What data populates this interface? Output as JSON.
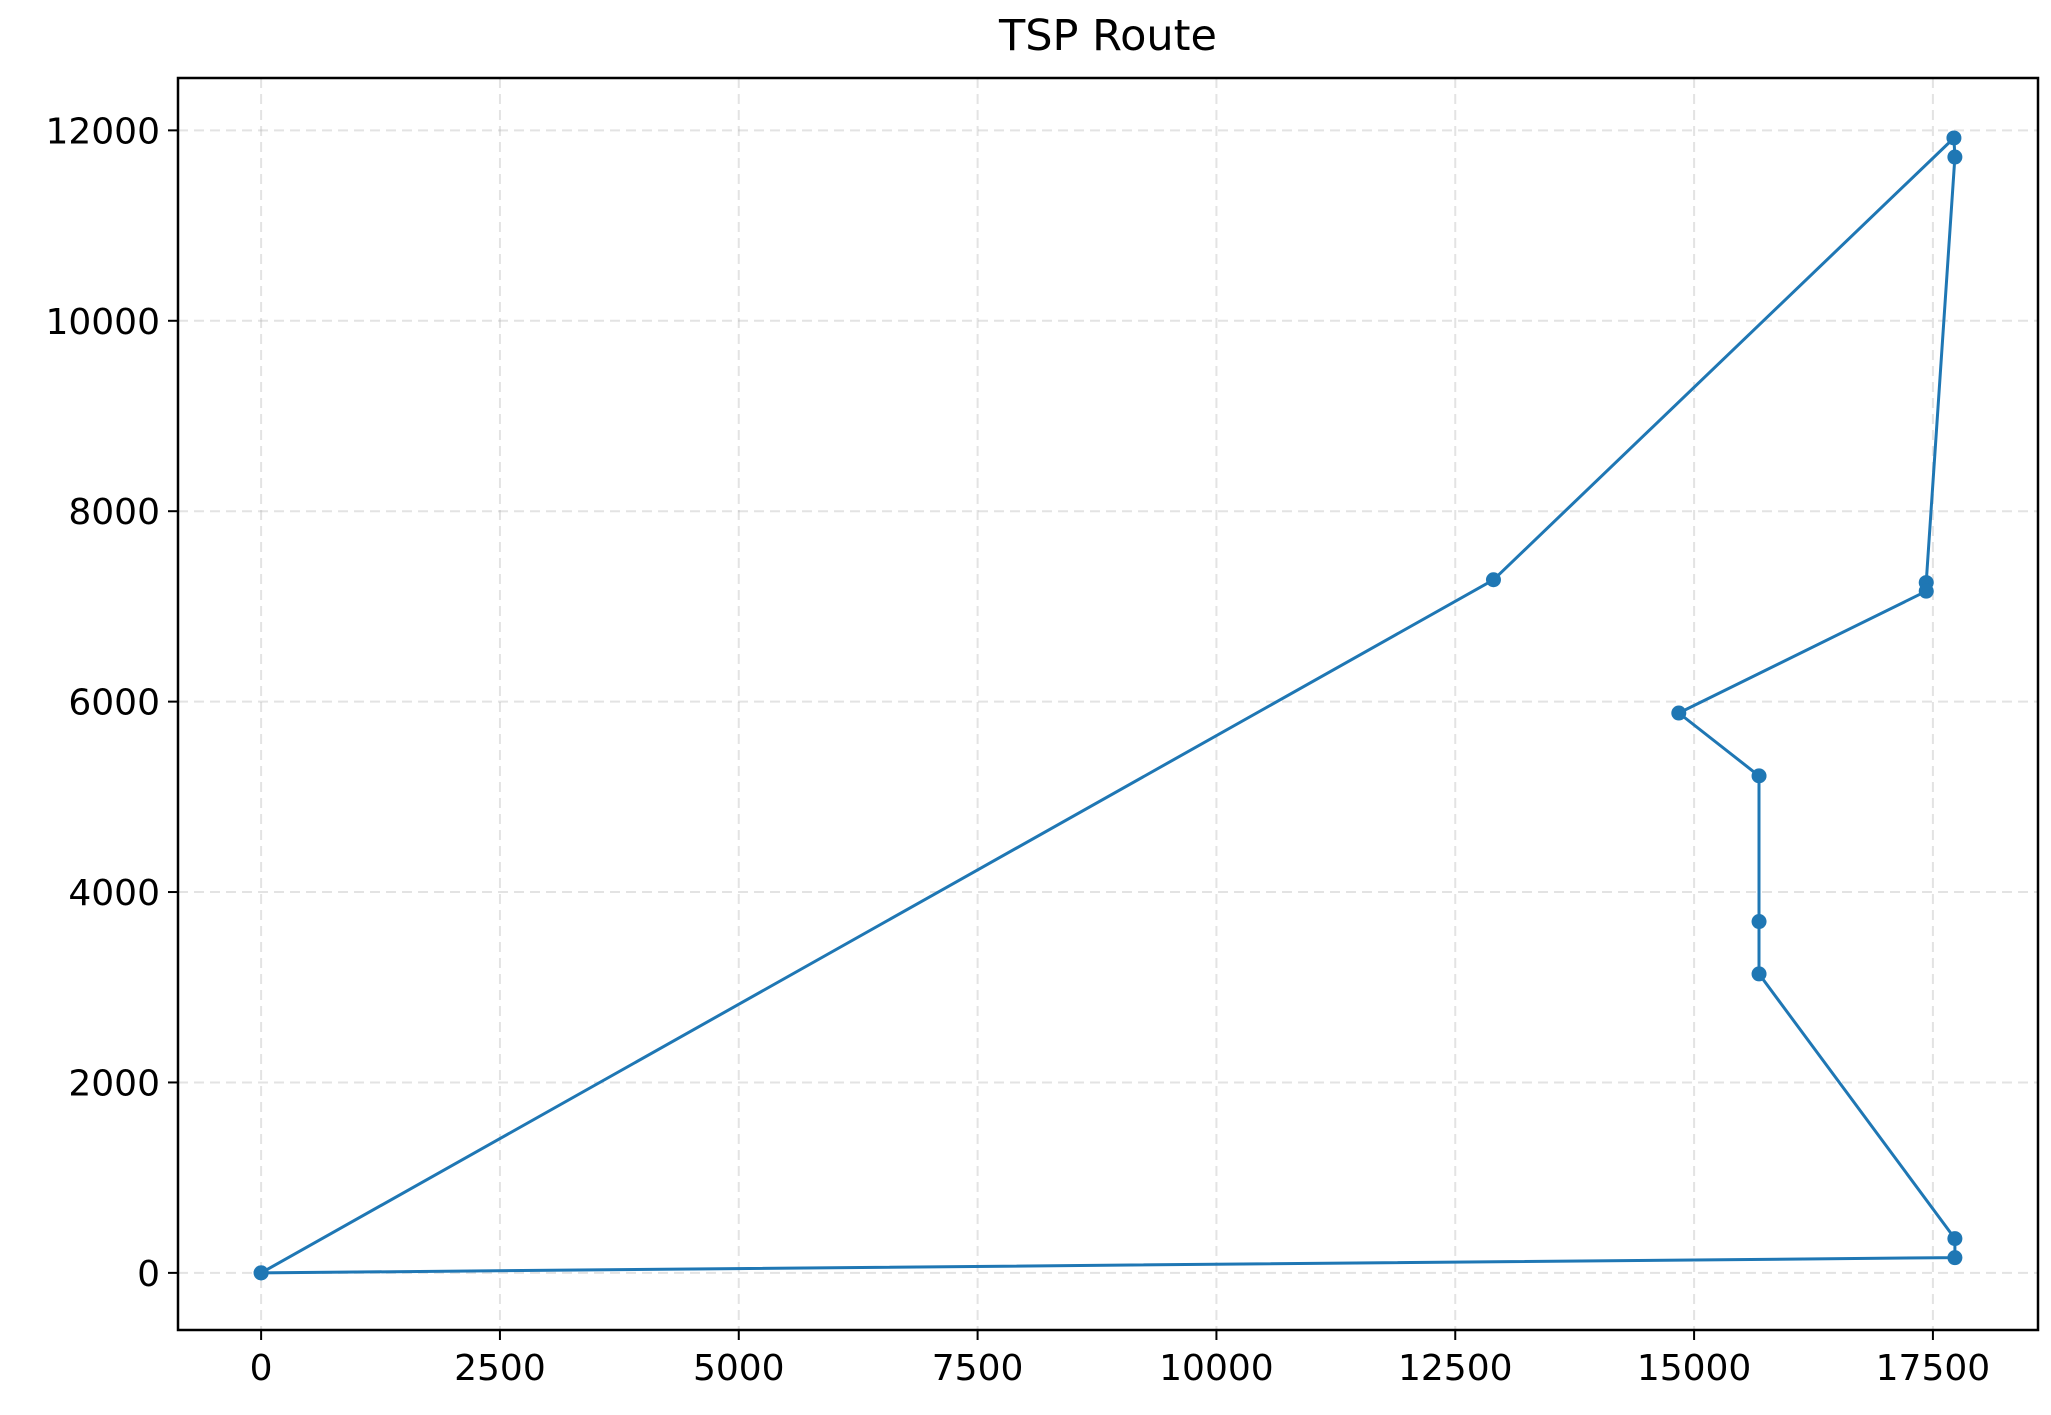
{
  "chart_data": {
    "type": "line",
    "title": "TSP Route",
    "xlabel": "",
    "ylabel": "",
    "xlim": [
      -870,
      18600
    ],
    "ylim": [
      -600,
      12550
    ],
    "xticks": [
      0,
      2500,
      5000,
      7500,
      10000,
      12500,
      15000,
      17500
    ],
    "yticks": [
      0,
      2000,
      4000,
      6000,
      8000,
      10000,
      12000
    ],
    "grid": true,
    "legend": "none",
    "color": "#1f77b4",
    "series": [
      {
        "x": [
          0,
          12900,
          17720,
          17730,
          17430,
          17430,
          14840,
          15680,
          15680,
          15680,
          17730,
          17730,
          0
        ],
        "y": [
          0,
          7280,
          11920,
          11720,
          7250,
          7160,
          5880,
          5220,
          3690,
          3140,
          360,
          160,
          0
        ]
      }
    ]
  }
}
